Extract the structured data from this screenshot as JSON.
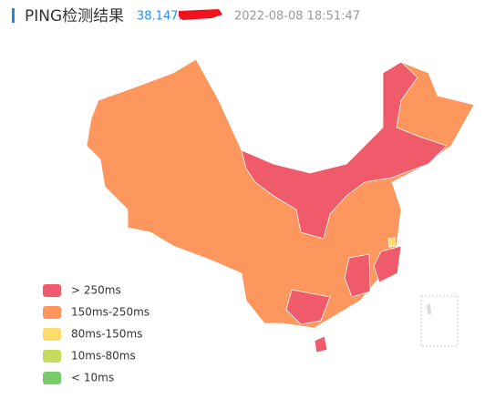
{
  "header": {
    "title": "PING检测结果",
    "ip": "38.147.",
    "time": "2022-08-08 18:51:47"
  },
  "legend": [
    {
      "label": "> 250ms",
      "color": "#ef5b6b"
    },
    {
      "label": "150ms-250ms",
      "color": "#fd975d"
    },
    {
      "label": "80ms-150ms",
      "color": "#fedb6a"
    },
    {
      "label": "10ms-80ms",
      "color": "#c6dc5c"
    },
    {
      "label": "< 10ms",
      "color": "#7ccb6b"
    }
  ]
}
